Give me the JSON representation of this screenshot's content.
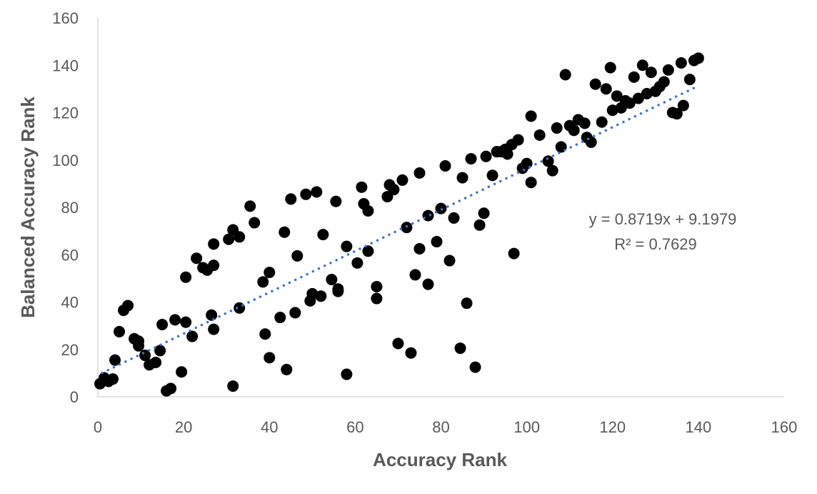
{
  "chart_data": {
    "type": "scatter",
    "xlabel": "Accuracy Rank",
    "ylabel": "Balanced Accuracy Rank",
    "xlim": [
      0,
      160
    ],
    "ylim": [
      0,
      160
    ],
    "x_ticks": [
      0,
      20,
      40,
      60,
      80,
      100,
      120,
      140,
      160
    ],
    "y_ticks": [
      0,
      20,
      40,
      60,
      80,
      100,
      120,
      140,
      160
    ],
    "grid": false,
    "marker_color": "#000000",
    "trendline": {
      "type": "linear",
      "slope": 0.8719,
      "intercept": 9.1979,
      "x_range": [
        1,
        140
      ],
      "color": "#4472C4",
      "style": "dotted",
      "equation_label": "y = 0.8719x + 9.1979",
      "r2_label": "R² = 0.7629"
    },
    "series": [
      {
        "points": [
          [
            0.5,
            5.5
          ],
          [
            1.5,
            8
          ],
          [
            2.5,
            6.5
          ],
          [
            3.5,
            7.5
          ],
          [
            4,
            15.5
          ],
          [
            5,
            27.5
          ],
          [
            6,
            36.5
          ],
          [
            7,
            38.5
          ],
          [
            8.5,
            24.5
          ],
          [
            9.5,
            21.5
          ],
          [
            9.5,
            23.5
          ],
          [
            11,
            17.5
          ],
          [
            12,
            13.5
          ],
          [
            13.5,
            14.5
          ],
          [
            14.5,
            19.5
          ],
          [
            15,
            30.5
          ],
          [
            16,
            2.5
          ],
          [
            17,
            3.5
          ],
          [
            18,
            32.5
          ],
          [
            19.5,
            10.5
          ],
          [
            20.5,
            31.5
          ],
          [
            20.5,
            50.5
          ],
          [
            22,
            25.5
          ],
          [
            23,
            58.5
          ],
          [
            24.5,
            54.5
          ],
          [
            25.5,
            53.5
          ],
          [
            26.5,
            34.5
          ],
          [
            27,
            28.5
          ],
          [
            27,
            55.5
          ],
          [
            27,
            64.5
          ],
          [
            30.5,
            66.5
          ],
          [
            31.5,
            70.5
          ],
          [
            31.5,
            4.5
          ],
          [
            33,
            37.5
          ],
          [
            33,
            67.5
          ],
          [
            35.5,
            80.5
          ],
          [
            36.5,
            73.5
          ],
          [
            38.5,
            48.5
          ],
          [
            39,
            26.5
          ],
          [
            40,
            52.5
          ],
          [
            40,
            16.5
          ],
          [
            42.5,
            33.5
          ],
          [
            43.5,
            69.5
          ],
          [
            44,
            11.5
          ],
          [
            45,
            83.5
          ],
          [
            46,
            35.5
          ],
          [
            46.5,
            59.5
          ],
          [
            48.5,
            85.5
          ],
          [
            49.5,
            40.5
          ],
          [
            50,
            43.5
          ],
          [
            51,
            86.5
          ],
          [
            52,
            42.5
          ],
          [
            52.5,
            68.5
          ],
          [
            54.5,
            49.5
          ],
          [
            55.5,
            82.5
          ],
          [
            56,
            44.5
          ],
          [
            56,
            45.5
          ],
          [
            58,
            63.5
          ],
          [
            58,
            9.5
          ],
          [
            60.5,
            56.5
          ],
          [
            61.5,
            88.5
          ],
          [
            62,
            81.5
          ],
          [
            63,
            78.5
          ],
          [
            63,
            61.5
          ],
          [
            65,
            41.5
          ],
          [
            65,
            46.5
          ],
          [
            67.5,
            84.5
          ],
          [
            68,
            89.5
          ],
          [
            69,
            87.5
          ],
          [
            70,
            22.5
          ],
          [
            71,
            91.5
          ],
          [
            72,
            71.5
          ],
          [
            73,
            18.5
          ],
          [
            74,
            51.5
          ],
          [
            75,
            62.5
          ],
          [
            75,
            94.5
          ],
          [
            77,
            76.5
          ],
          [
            77,
            47.5
          ],
          [
            79,
            65.5
          ],
          [
            80,
            79.5
          ],
          [
            81,
            97.5
          ],
          [
            82,
            57.5
          ],
          [
            83,
            75.5
          ],
          [
            84.5,
            20.5
          ],
          [
            85,
            92.5
          ],
          [
            86,
            39.5
          ],
          [
            87,
            100.5
          ],
          [
            88,
            12.5
          ],
          [
            89,
            72.5
          ],
          [
            90,
            77.5
          ],
          [
            90.5,
            101.5
          ],
          [
            92,
            93.5
          ],
          [
            93,
            103.5
          ],
          [
            94,
            103.5
          ],
          [
            95,
            104.5
          ],
          [
            95.5,
            102.5
          ],
          [
            96.5,
            106.5
          ],
          [
            97,
            60.5
          ],
          [
            98,
            108.5
          ],
          [
            99,
            96.5
          ],
          [
            100,
            98.5
          ],
          [
            101,
            90.5
          ],
          [
            101,
            118.5
          ],
          [
            103,
            110.5
          ],
          [
            105,
            99.5
          ],
          [
            106,
            95.5
          ],
          [
            107,
            113.5
          ],
          [
            108,
            105.5
          ],
          [
            109,
            136
          ],
          [
            110,
            114.5
          ],
          [
            111,
            112.5
          ],
          [
            112,
            117
          ],
          [
            113.5,
            115.5
          ],
          [
            114,
            109.5
          ],
          [
            115,
            107.5
          ],
          [
            116,
            132
          ],
          [
            117.5,
            116
          ],
          [
            118.5,
            130
          ],
          [
            119.5,
            139
          ],
          [
            120,
            121
          ],
          [
            121,
            127
          ],
          [
            122,
            122
          ],
          [
            123,
            125
          ],
          [
            124,
            124
          ],
          [
            125,
            135
          ],
          [
            126,
            126
          ],
          [
            127,
            140
          ],
          [
            128,
            128
          ],
          [
            129,
            137
          ],
          [
            130,
            129
          ],
          [
            131,
            131
          ],
          [
            132,
            133
          ],
          [
            133,
            138
          ],
          [
            134,
            120
          ],
          [
            135,
            119.5
          ],
          [
            136,
            141
          ],
          [
            136.5,
            123
          ],
          [
            138,
            134
          ],
          [
            139,
            142
          ],
          [
            140,
            143
          ]
        ]
      }
    ]
  }
}
